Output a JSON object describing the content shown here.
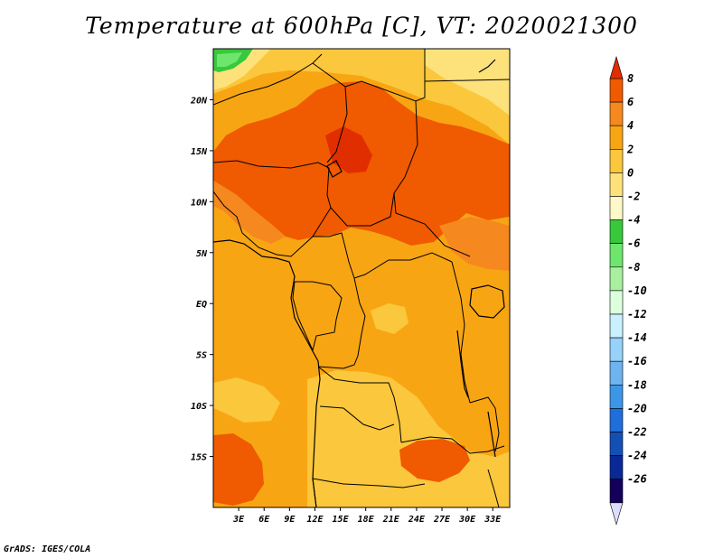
{
  "title": "Temperature at 600hPa [C], VT: 2020021300",
  "footer": "GrADS: IGES/COLA",
  "map": {
    "lon_range": [
      0,
      35
    ],
    "lat_range": [
      -20,
      25
    ],
    "lon_ticks": [
      "3E",
      "6E",
      "9E",
      "12E",
      "15E",
      "18E",
      "21E",
      "24E",
      "27E",
      "30E",
      "33E"
    ],
    "lon_tick_values": [
      3,
      6,
      9,
      12,
      15,
      18,
      21,
      24,
      27,
      30,
      33
    ],
    "lat_ticks": [
      "20N",
      "15N",
      "10N",
      "5N",
      "EQ",
      "5S",
      "10S",
      "15S"
    ],
    "lat_tick_values": [
      20,
      15,
      10,
      5,
      0,
      -5,
      -10,
      -15
    ]
  },
  "colorbar": {
    "levels": [
      "8",
      "6",
      "4",
      "2",
      "0",
      "-2",
      "-4",
      "-6",
      "-8",
      "-10",
      "-12",
      "-14",
      "-16",
      "-18",
      "-20",
      "-22",
      "-24",
      "-26"
    ],
    "colors": [
      "#e12e00",
      "#f05a00",
      "#f5881e",
      "#f8a514",
      "#fbc73c",
      "#fde27c",
      "#fff8c8",
      "#38c83c",
      "#6ee66e",
      "#a8f0a0",
      "#dcffde",
      "#c8f0ff",
      "#96d2fa",
      "#6eb4f0",
      "#3c96e6",
      "#1e6edc",
      "#1450b4",
      "#0a2896",
      "#14005a",
      "#dcdcff"
    ],
    "top_color": "#e12e00",
    "bottom_color": "#dcdcff"
  },
  "chart_data": {
    "type": "heatmap",
    "title": "Temperature at 600hPa [C], VT: 2020021300",
    "variable": "Temperature at 600hPa [C]",
    "valid_time": "2020021300",
    "lon_range": [
      0,
      35
    ],
    "lat_range": [
      -20,
      25
    ],
    "units": "C",
    "contour_levels": [
      8,
      6,
      4,
      2,
      0,
      -2,
      -4,
      -6,
      -8,
      -10,
      -12,
      -14,
      -16,
      -18,
      -20,
      -22,
      -24,
      -26
    ],
    "regions": [
      {
        "name": "far-north-green",
        "value_range": [
          -6,
          -4
        ]
      },
      {
        "name": "north-yellow",
        "value_range": [
          -2,
          0
        ]
      },
      {
        "name": "sahel-warm-belt",
        "value_range": [
          4,
          6
        ]
      },
      {
        "name": "central-orange",
        "value_range": [
          2,
          4
        ]
      },
      {
        "name": "south-light",
        "value_range": [
          0,
          2
        ]
      },
      {
        "name": "southeast-warm-patch",
        "value_range": [
          4,
          6
        ]
      }
    ]
  }
}
